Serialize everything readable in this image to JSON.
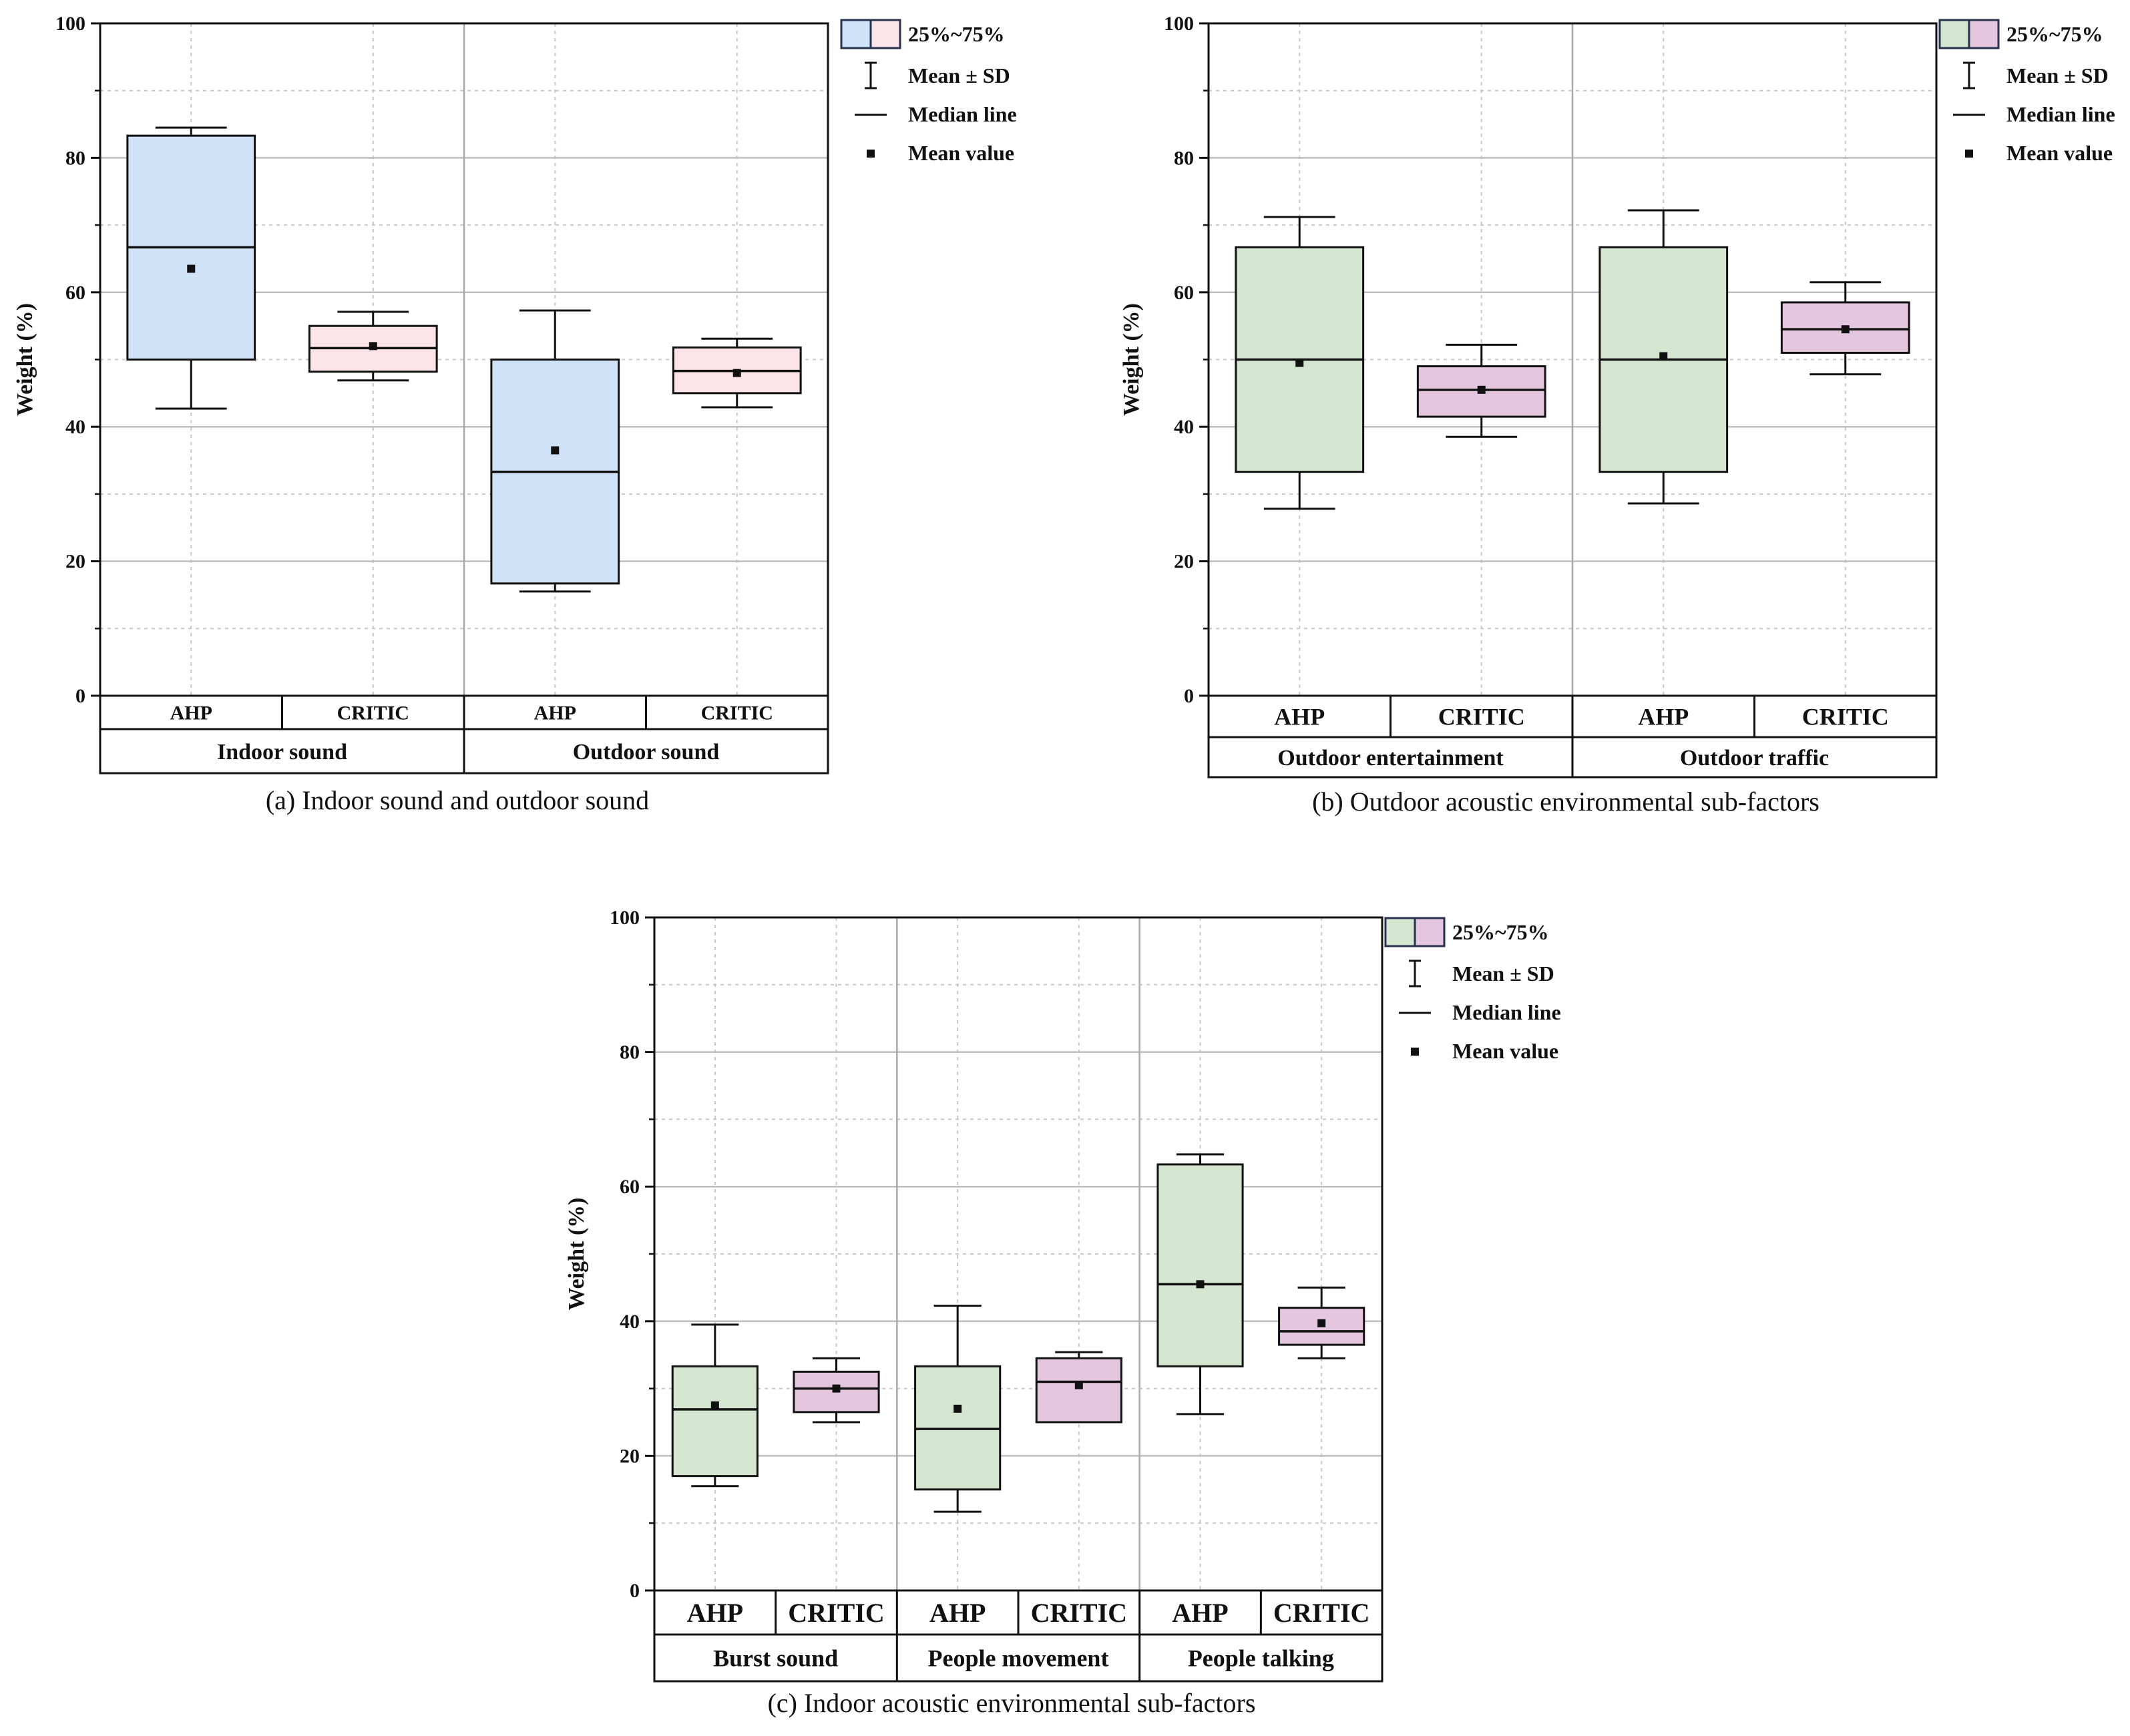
{
  "chart_data": [
    {
      "type": "box",
      "caption": "(a) Indoor sound and outdoor sound",
      "ylabel": "Weight (%)",
      "ylim": [
        0,
        100
      ],
      "yticks": [
        "0",
        "20",
        "40",
        "60",
        "80",
        "100"
      ],
      "grid": true,
      "groups": [
        "Indoor sound",
        "Outdoor sound"
      ],
      "methods": [
        "AHP",
        "CRITIC"
      ],
      "method_colors": {
        "AHP": "#cfe2f8",
        "CRITIC": "#fde3ea"
      },
      "legend": {
        "box": "25%~75%",
        "sd": "Mean ± SD",
        "median": "Median line",
        "mean": "Mean value"
      },
      "boxes": [
        {
          "group": "Indoor sound",
          "method": "AHP",
          "q1": 50,
          "median": 66.7,
          "q3": 83.3,
          "mean": 63.5,
          "sd_low": 42.7,
          "sd_high": 84.5
        },
        {
          "group": "Indoor sound",
          "method": "CRITIC",
          "q1": 48.2,
          "median": 51.7,
          "q3": 55.0,
          "mean": 52.0,
          "sd_low": 46.9,
          "sd_high": 57.1
        },
        {
          "group": "Outdoor sound",
          "method": "AHP",
          "q1": 16.7,
          "median": 33.3,
          "q3": 50.0,
          "mean": 36.5,
          "sd_low": 15.5,
          "sd_high": 57.3
        },
        {
          "group": "Outdoor sound",
          "method": "CRITIC",
          "q1": 45.0,
          "median": 48.3,
          "q3": 51.8,
          "mean": 48.0,
          "sd_low": 42.9,
          "sd_high": 53.1
        }
      ]
    },
    {
      "type": "box",
      "caption": "(b) Outdoor acoustic environmental sub-factors",
      "ylabel": "Weight (%)",
      "ylim": [
        0,
        100
      ],
      "yticks": [
        "0",
        "20",
        "40",
        "60",
        "80",
        "100"
      ],
      "grid": true,
      "groups": [
        "Outdoor entertainment",
        "Outdoor traffic"
      ],
      "methods": [
        "AHP",
        "CRITIC"
      ],
      "method_colors": {
        "AHP": "#d5e6d0",
        "CRITIC": "#e4c7df"
      },
      "legend": {
        "box": "25%~75%",
        "sd": "Mean ± SD",
        "median": "Median line",
        "mean": "Mean value"
      },
      "boxes": [
        {
          "group": "Outdoor entertainment",
          "method": "AHP",
          "q1": 33.3,
          "median": 50.0,
          "q3": 66.7,
          "mean": 49.5,
          "sd_low": 27.8,
          "sd_high": 71.2
        },
        {
          "group": "Outdoor entertainment",
          "method": "CRITIC",
          "q1": 41.5,
          "median": 45.5,
          "q3": 49.0,
          "mean": 45.5,
          "sd_low": 38.5,
          "sd_high": 52.2
        },
        {
          "group": "Outdoor traffic",
          "method": "AHP",
          "q1": 33.3,
          "median": 50.0,
          "q3": 66.7,
          "mean": 50.5,
          "sd_low": 28.6,
          "sd_high": 72.2
        },
        {
          "group": "Outdoor traffic",
          "method": "CRITIC",
          "q1": 51.0,
          "median": 54.5,
          "q3": 58.5,
          "mean": 54.5,
          "sd_low": 47.8,
          "sd_high": 61.5
        }
      ]
    },
    {
      "type": "box",
      "caption": "(c) Indoor acoustic environmental sub-factors",
      "ylabel": "Weight (%)",
      "ylim": [
        0,
        100
      ],
      "yticks": [
        "0",
        "20",
        "40",
        "60",
        "80",
        "100"
      ],
      "grid": true,
      "groups": [
        "Burst sound",
        "People movement",
        "People talking"
      ],
      "methods": [
        "AHP",
        "CRITIC"
      ],
      "method_colors": {
        "AHP": "#d5e6d0",
        "CRITIC": "#e4c7df"
      },
      "legend": {
        "box": "25%~75%",
        "sd": "Mean ± SD",
        "median": "Median line",
        "mean": "Mean value"
      },
      "boxes": [
        {
          "group": "Burst sound",
          "method": "AHP",
          "q1": 17.0,
          "median": 26.9,
          "q3": 33.3,
          "mean": 27.5,
          "sd_low": 15.5,
          "sd_high": 39.5
        },
        {
          "group": "Burst sound",
          "method": "CRITIC",
          "q1": 26.5,
          "median": 30.0,
          "q3": 32.5,
          "mean": 30.0,
          "sd_low": 25.0,
          "sd_high": 34.5
        },
        {
          "group": "People movement",
          "method": "AHP",
          "q1": 15.0,
          "median": 24.0,
          "q3": 33.3,
          "mean": 27.0,
          "sd_low": 11.7,
          "sd_high": 42.3
        },
        {
          "group": "People movement",
          "method": "CRITIC",
          "q1": 25.0,
          "median": 31.0,
          "q3": 34.5,
          "mean": 30.5,
          "sd_low": 25.6,
          "sd_high": 35.4
        },
        {
          "group": "People talking",
          "method": "AHP",
          "q1": 33.3,
          "median": 45.5,
          "q3": 63.3,
          "mean": 45.5,
          "sd_low": 26.2,
          "sd_high": 64.8
        },
        {
          "group": "People talking",
          "method": "CRITIC",
          "q1": 36.5,
          "median": 38.5,
          "q3": 42.0,
          "mean": 39.7,
          "sd_low": 34.5,
          "sd_high": 45.0
        }
      ]
    }
  ]
}
